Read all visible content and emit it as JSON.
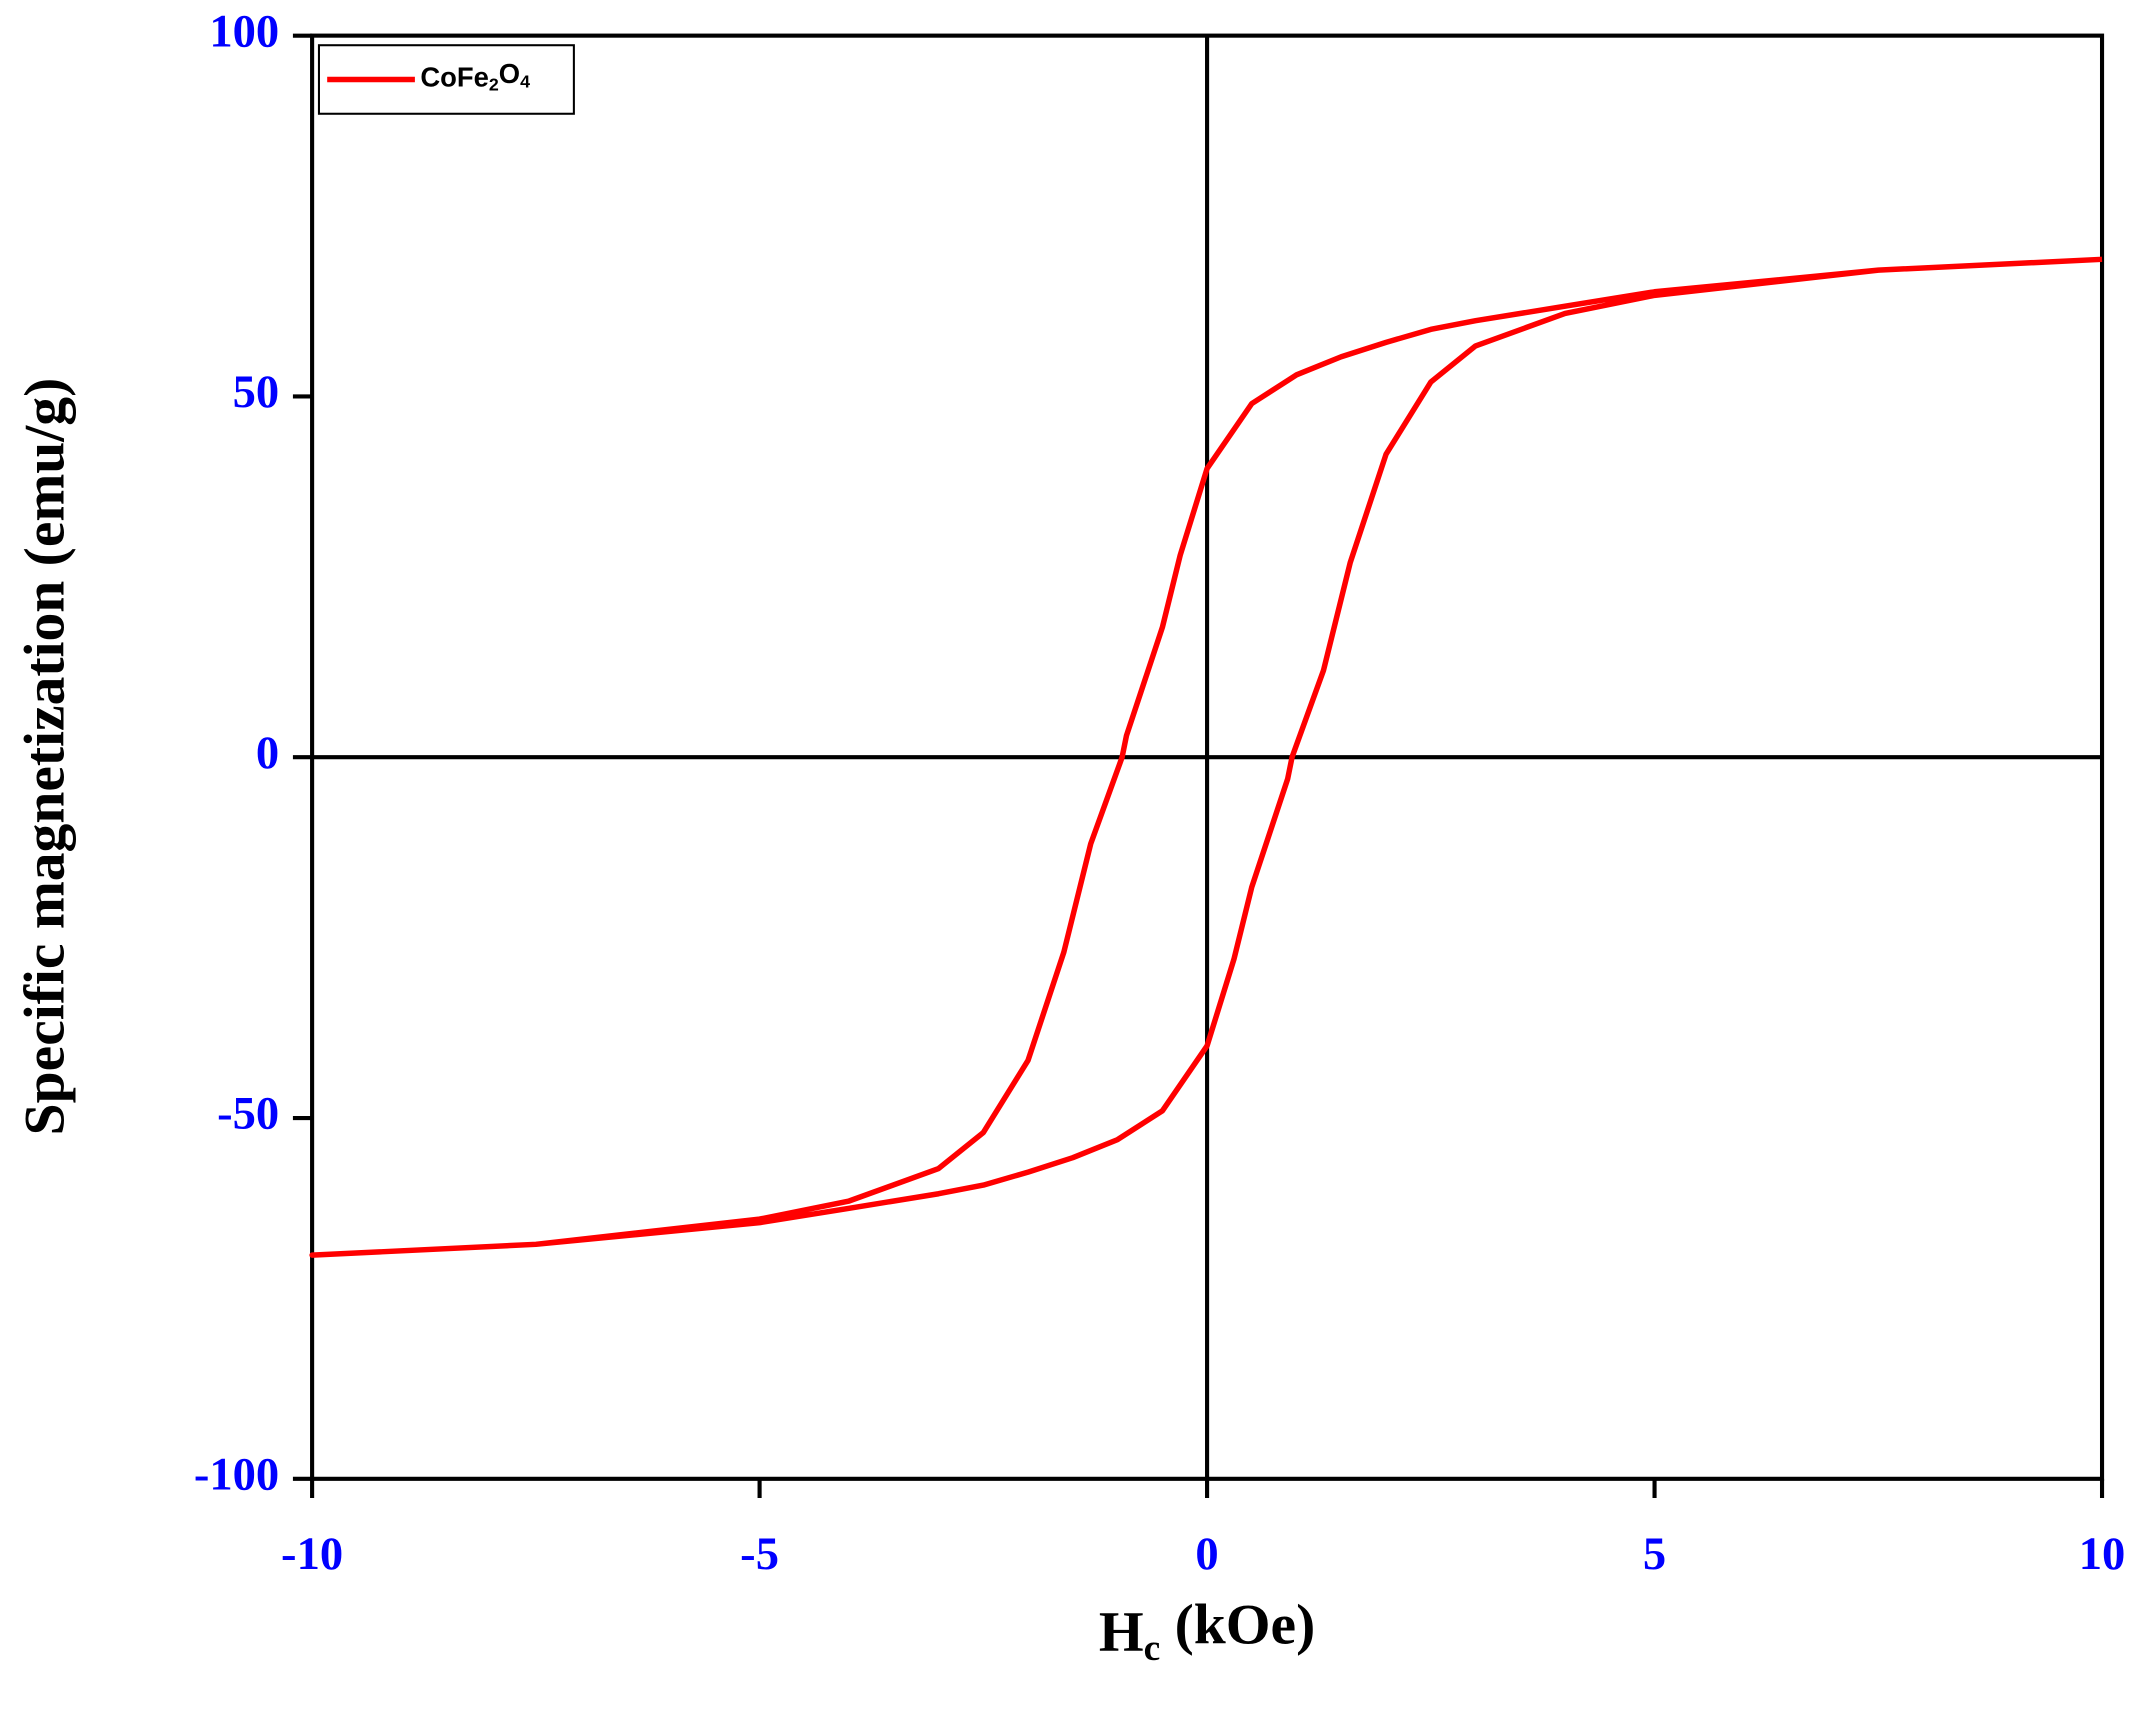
{
  "chart_data": {
    "type": "line",
    "x_label": "Hc (kOe)",
    "y_label": "Specific magnetization (emu/g)",
    "xlim": [
      -10,
      10
    ],
    "xticks": [
      -10,
      -5,
      0,
      5,
      10
    ],
    "ylim": [
      -100,
      100
    ],
    "yticks": [
      -100,
      -50,
      0,
      50,
      100
    ],
    "tick_label_color": "#0000ff",
    "zero_lines": true,
    "legend": "upper left",
    "series": [
      {
        "name": "CoFe2O4",
        "color": "#ff0000",
        "x": [
          10,
          7.5,
          5,
          4,
          3,
          2.5,
          2,
          1.5,
          1,
          0.5,
          0,
          -0.3,
          -0.5,
          -0.9,
          -0.95,
          -1.3,
          -1.6,
          -2,
          -2.5,
          -3,
          -4,
          -5,
          -7.5,
          -10,
          -7.5,
          -5,
          -4,
          -3,
          -2.5,
          -2,
          -1.5,
          -1,
          -0.5,
          0,
          0.3,
          0.5,
          0.9,
          0.95,
          1.3,
          1.6,
          2,
          2.5,
          3,
          4,
          5,
          7.5,
          10
        ],
        "values": [
          69,
          67.5,
          64.5,
          62.5,
          60.5,
          59.3,
          57.5,
          55.5,
          53,
          49,
          40,
          28,
          18,
          3,
          0,
          -12,
          -27,
          -42,
          -52,
          -57,
          -61.5,
          -64,
          -67.5,
          -69,
          -67.5,
          -64.5,
          -62.5,
          -60.5,
          -59.3,
          -57.5,
          -55.5,
          -53,
          -49,
          -40,
          -28,
          -18,
          -3,
          0,
          12,
          27,
          42,
          52,
          57,
          61.5,
          64,
          67.5,
          69
        ]
      }
    ]
  }
}
